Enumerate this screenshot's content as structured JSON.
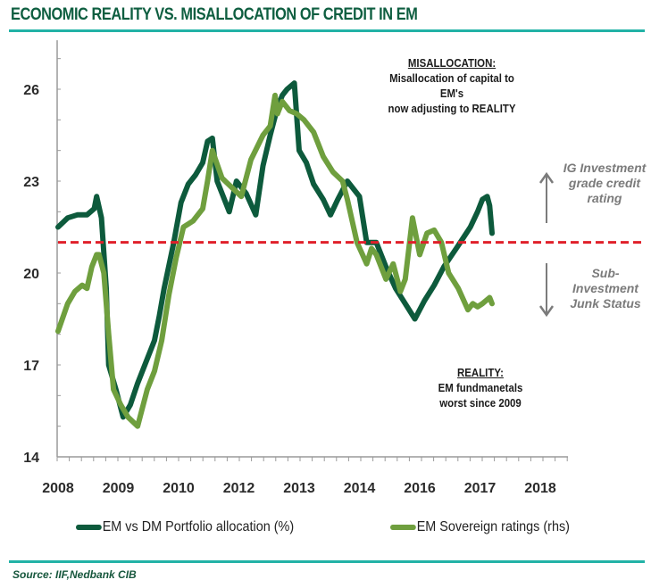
{
  "title": "ECONOMIC REALITY VS. MISALLOCATION OF CREDIT IN EM",
  "source": "Source: IIF,Nedbank CIB",
  "colors": {
    "title": "#0e5e40",
    "rule": "#22b2a6",
    "series_allocation": "#0d5a3c",
    "series_ratings": "#6f9f3e",
    "threshold": "#e0202a",
    "arrow": "#7b7b7b"
  },
  "annotations": {
    "misallocation": {
      "head": "MISALLOCATION:",
      "line1": "Misallocation of capital to EM's",
      "line2": "now adjusting to REALITY"
    },
    "reality": {
      "head": "REALITY:",
      "line1": "EM fundmanetals",
      "line2": "worst since 2009"
    },
    "ig": {
      "line1": "IG Investment",
      "line2": "grade credit",
      "line3": "rating"
    },
    "junk": {
      "line1": "Sub-",
      "line2": "Investment",
      "line3": "Junk Status"
    }
  },
  "legend": [
    {
      "label": "EM vs DM Portfolio allocation (%)"
    },
    {
      "label": "EM Sovereign ratings (rhs)"
    }
  ],
  "chart_data": {
    "type": "line",
    "title": "ECONOMIC REALITY VS. MISALLOCATION OF CREDIT IN EM",
    "xlabel": "",
    "ylabel": "",
    "ylim": [
      14,
      27.6
    ],
    "yticks": [
      14,
      17,
      20,
      23,
      26
    ],
    "ytick_labels": [
      "14",
      "17",
      "20",
      "23",
      "26"
    ],
    "x_tick_labels": [
      "2008",
      "2009",
      "2010",
      "2012",
      "2013",
      "2014",
      "2016",
      "2017",
      "2018"
    ],
    "x_note": "x is position along the date axis (0 = 2008 label, 1 = 2018 label)",
    "xlim": [
      0,
      1
    ],
    "grid": false,
    "legend_position": "bottom",
    "threshold": {
      "value": 21,
      "style": "dashed",
      "label": "Investment grade threshold"
    },
    "series": [
      {
        "name": "EM vs DM Portfolio allocation (%)",
        "x": [
          0.0,
          0.02,
          0.04,
          0.06,
          0.075,
          0.08,
          0.09,
          0.1,
          0.105,
          0.12,
          0.13,
          0.135,
          0.15,
          0.165,
          0.18,
          0.2,
          0.21,
          0.22,
          0.24,
          0.255,
          0.27,
          0.285,
          0.3,
          0.31,
          0.32,
          0.33,
          0.34,
          0.355,
          0.37,
          0.39,
          0.41,
          0.425,
          0.44,
          0.455,
          0.465,
          0.475,
          0.49,
          0.5,
          0.515,
          0.53,
          0.55,
          0.565,
          0.58,
          0.6,
          0.625,
          0.64,
          0.66,
          0.68,
          0.7,
          0.72,
          0.74,
          0.76,
          0.78,
          0.8,
          0.83,
          0.855,
          0.87,
          0.88,
          0.89,
          0.895,
          0.9
        ],
        "values": [
          21.5,
          21.8,
          21.9,
          21.9,
          22.1,
          22.5,
          21.8,
          19.5,
          17.0,
          16.2,
          15.6,
          15.3,
          15.7,
          16.4,
          17.0,
          17.8,
          18.6,
          19.5,
          21.0,
          22.3,
          22.9,
          23.2,
          23.6,
          24.3,
          24.4,
          23.0,
          22.6,
          22.0,
          23.0,
          22.6,
          21.9,
          23.5,
          24.5,
          25.4,
          25.8,
          26.0,
          26.2,
          24.0,
          23.6,
          22.9,
          22.4,
          21.9,
          22.4,
          23.0,
          22.5,
          21.0,
          21.0,
          20.2,
          19.5,
          19.0,
          18.5,
          19.1,
          19.6,
          20.2,
          20.9,
          21.5,
          22.0,
          22.4,
          22.5,
          22.2,
          21.3
        ]
      },
      {
        "name": "EM Sovereign ratings (rhs)",
        "x": [
          0.0,
          0.02,
          0.035,
          0.05,
          0.06,
          0.07,
          0.08,
          0.085,
          0.095,
          0.105,
          0.115,
          0.13,
          0.145,
          0.165,
          0.185,
          0.2,
          0.215,
          0.23,
          0.245,
          0.26,
          0.28,
          0.3,
          0.31,
          0.32,
          0.34,
          0.36,
          0.38,
          0.4,
          0.425,
          0.44,
          0.45,
          0.455,
          0.465,
          0.48,
          0.495,
          0.51,
          0.53,
          0.55,
          0.57,
          0.59,
          0.6,
          0.62,
          0.64,
          0.65,
          0.66,
          0.68,
          0.695,
          0.71,
          0.72,
          0.735,
          0.75,
          0.765,
          0.78,
          0.795,
          0.81,
          0.83,
          0.85,
          0.86,
          0.87,
          0.88,
          0.895,
          0.9
        ],
        "values": [
          18.1,
          19.0,
          19.4,
          19.6,
          19.5,
          20.2,
          20.6,
          20.6,
          20.0,
          18.0,
          16.2,
          15.7,
          15.3,
          15.0,
          16.2,
          16.8,
          17.8,
          19.3,
          20.5,
          21.5,
          21.7,
          22.1,
          23.0,
          24.0,
          23.1,
          22.8,
          22.5,
          23.7,
          24.5,
          24.8,
          25.8,
          25.2,
          25.6,
          25.3,
          25.2,
          25.0,
          24.6,
          23.8,
          23.3,
          23.0,
          22.4,
          21.0,
          20.3,
          20.8,
          20.6,
          19.8,
          20.3,
          19.4,
          19.8,
          21.8,
          20.6,
          21.3,
          21.4,
          21.0,
          20.0,
          19.5,
          18.8,
          19.0,
          18.9,
          19.0,
          19.2,
          19.0
        ]
      }
    ]
  }
}
